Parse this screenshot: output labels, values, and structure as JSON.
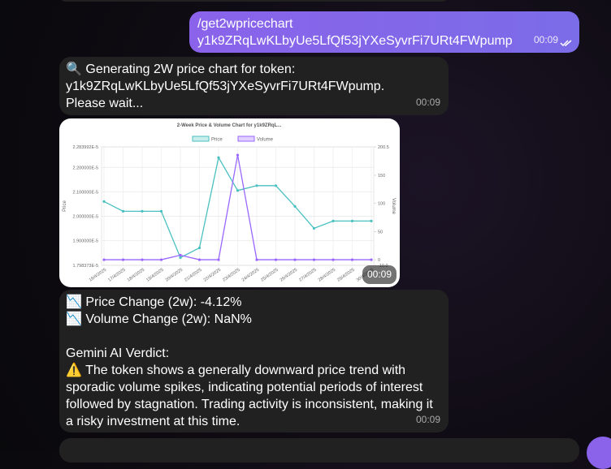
{
  "messages": [
    {
      "lines": [
        "/get2wpricechart",
        "y1k9ZRqLwKLbyUe5LfQf53jYXeSyvrFi7URt4FWpump"
      ],
      "time": "00:09"
    },
    {
      "text": "🔍 Generating 2W price chart for token: y1k9ZRqLwKLbyUe5LfQf53jYXeSyvrFi7URt4FWpump. Please wait...",
      "time": "00:09"
    },
    {
      "chart": {
        "type": "line",
        "title": "2-Week Price & Volume Chart for y1k9ZRqL...",
        "categories": [
          "16/4/2025",
          "17/4/2025",
          "18/4/2025",
          "19/4/2025",
          "20/4/2025",
          "21/4/2025",
          "22/4/2025",
          "23/4/2025",
          "24/4/2025",
          "25/4/2025",
          "26/4/2025",
          "27/4/2025",
          "28/4/2025",
          "29/4/2025",
          "30/4/2025"
        ],
        "ylabel": "Price",
        "y2label": "Volume",
        "ylim": [
          1.798373e-05,
          2.283992e-05
        ],
        "yticks": [
          {
            "value": 1.798373e-05,
            "label": "1.798373E-5"
          },
          {
            "value": 1.9e-05,
            "label": "1.900000E-5"
          },
          {
            "value": 2e-05,
            "label": "2.000000E-5"
          },
          {
            "value": 2.1e-05,
            "label": "2.100000E-5"
          },
          {
            "value": 2.2e-05,
            "label": "2.200000E-5"
          },
          {
            "value": 2.283992e-05,
            "label": "2.283992E-5"
          }
        ],
        "y2lim": [
          -10,
          200.5
        ],
        "y2ticks": [
          {
            "value": -10,
            "label": "-10.0"
          },
          0,
          50,
          100,
          150,
          200.5
        ],
        "grid": true,
        "series": [
          {
            "name": "Price",
            "color": "#4bc0c0",
            "values": [
              2.06e-05,
              2.02e-05,
              2.02e-05,
              2.02e-05,
              1.83e-05,
              1.87e-05,
              2.24e-05,
              2.105e-05,
              2.125e-05,
              2.125e-05,
              2.04e-05,
              1.95e-05,
              1.98e-05,
              1.98e-05,
              1.98e-05
            ]
          },
          {
            "name": "Volume",
            "color": "#9966ff",
            "axis": "y2",
            "values": [
              0,
              0,
              0,
              0,
              8,
              0,
              0,
              186,
              0,
              0,
              0,
              0,
              0,
              0,
              0
            ]
          }
        ]
      },
      "time": "00:09"
    },
    {
      "lines": [
        "📉 Price Change (2w): -4.12%",
        "📉 Volume Change (2w): NaN%"
      ],
      "heading": "Gemini AI Verdict:",
      "verdict": "⚠️ The token shows a generally downward price trend with sporadic volume spikes, indicating potential periods of interest followed by stagnation. Trading activity is inconsistent, making it a risky investment at this time.",
      "time": "00:09"
    }
  ]
}
